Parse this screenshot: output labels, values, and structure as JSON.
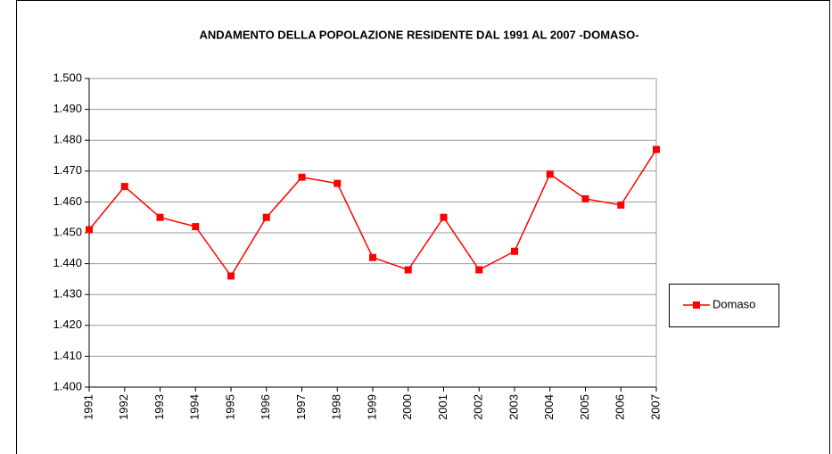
{
  "chart_data": {
    "type": "line",
    "title": "ANDAMENTO DELLA POPOLAZIONE RESIDENTE DAL 1991 AL 2007 -DOMASO-",
    "categories": [
      "1991",
      "1992",
      "1993",
      "1994",
      "1995",
      "1996",
      "1997",
      "1998",
      "1999",
      "2000",
      "2001",
      "2002",
      "2003",
      "2004",
      "2005",
      "2006",
      "2007"
    ],
    "series": [
      {
        "name": "Domaso",
        "color": "#ff0000",
        "values": [
          1451,
          1465,
          1455,
          1452,
          1436,
          1455,
          1468,
          1466,
          1442,
          1438,
          1455,
          1438,
          1444,
          1469,
          1461,
          1459,
          1477
        ]
      }
    ],
    "ylim": [
      1400,
      1500
    ],
    "yticks": [
      {
        "value": 1400,
        "label": "1.400"
      },
      {
        "value": 1410,
        "label": "1.410"
      },
      {
        "value": 1420,
        "label": "1.420"
      },
      {
        "value": 1430,
        "label": "1.430"
      },
      {
        "value": 1440,
        "label": "1.440"
      },
      {
        "value": 1450,
        "label": "1.450"
      },
      {
        "value": 1460,
        "label": "1.460"
      },
      {
        "value": 1470,
        "label": "1.470"
      },
      {
        "value": 1480,
        "label": "1.480"
      },
      {
        "value": 1490,
        "label": "1.490"
      },
      {
        "value": 1500,
        "label": "1.500"
      }
    ],
    "grid": true,
    "legend": "right"
  }
}
